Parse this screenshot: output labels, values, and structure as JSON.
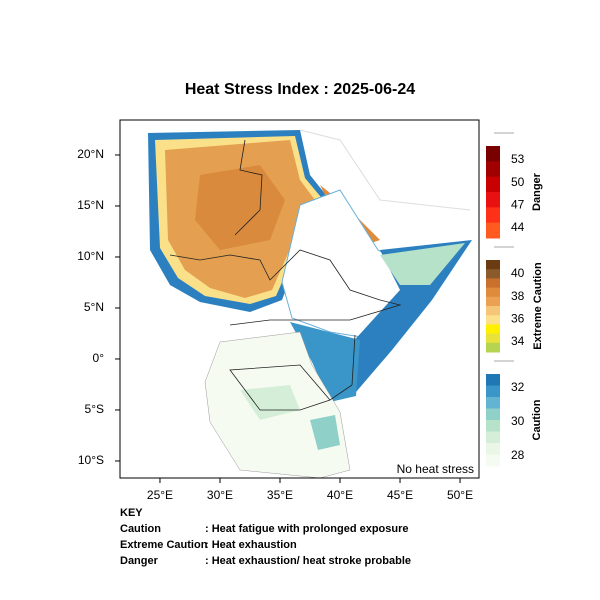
{
  "header": {
    "title": "Heat Stress Index : 2025-06-24"
  },
  "map": {
    "lon_range": [
      21.67,
      51.58
    ],
    "lat_range": [
      -11.67,
      23.43
    ],
    "lon_ticks": [
      {
        "value": 25,
        "label": "25°E"
      },
      {
        "value": 30,
        "label": "30°E"
      },
      {
        "value": 35,
        "label": "35°E"
      },
      {
        "value": 40,
        "label": "40°E"
      },
      {
        "value": 45,
        "label": "45°E"
      },
      {
        "value": 50,
        "label": "50°E"
      }
    ],
    "lat_ticks": [
      {
        "value": 20,
        "label": "20°N"
      },
      {
        "value": 15,
        "label": "15°N"
      },
      {
        "value": 10,
        "label": "10°N"
      },
      {
        "value": 5,
        "label": "5°N"
      },
      {
        "value": 0,
        "label": "0°"
      },
      {
        "value": -5,
        "label": "5°S"
      },
      {
        "value": -10,
        "label": "10°S"
      }
    ],
    "annotation": "No heat stress"
  },
  "legend": [
    {
      "name": "Danger",
      "labels": [
        53,
        50,
        47,
        44
      ],
      "colors": [
        "#7a0000",
        "#a00000",
        "#c80000",
        "#e81010",
        "#ff3018",
        "#ff5a20"
      ]
    },
    {
      "name": "Extreme Caution",
      "labels": [
        40,
        38,
        36,
        34
      ],
      "colors": [
        "#6b3c12",
        "#8b5a2b",
        "#c8702c",
        "#e08a3c",
        "#eca052",
        "#f5c678",
        "#fde08c",
        "#fff000",
        "#e8e23a",
        "#b4d452"
      ]
    },
    {
      "name": "Caution",
      "labels": [
        32,
        30,
        28
      ],
      "colors": [
        "#1f78b4",
        "#3a95c8",
        "#62b4d2",
        "#8fd0c8",
        "#b5e2c8",
        "#d4eed8",
        "#eaf6e6",
        "#f6fbf2"
      ]
    }
  ],
  "key": {
    "title": "KEY",
    "rows": [
      [
        "Caution",
        ": Heat fatigue with prolonged exposure"
      ],
      [
        "Extreme Caution",
        " : Heat exhaustion"
      ],
      [
        "Danger",
        ": Heat exhaustion/ heat stroke probable"
      ]
    ]
  }
}
